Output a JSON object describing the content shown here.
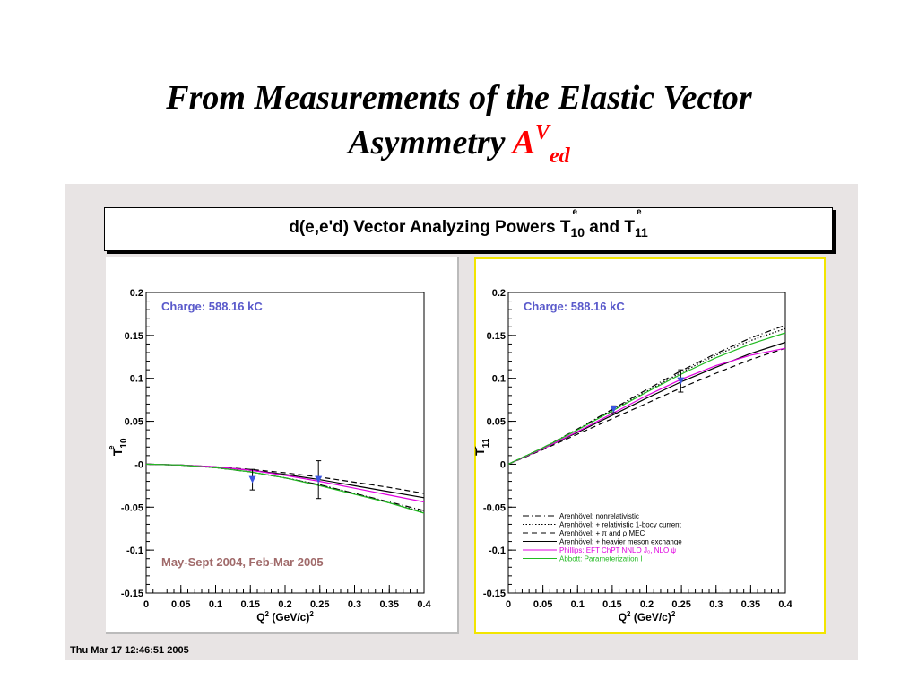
{
  "slide": {
    "title_line1": "From Measurements of the Elastic Vector",
    "title_line2": "Asymmetry",
    "title_symbol": "A",
    "title_sup": "V",
    "title_sub": "ed"
  },
  "canvas": {
    "header_prefix": "d(e,e'd) Vector Analyzing Powers T",
    "header_sub1": "10",
    "header_and": " and T",
    "header_sub2": "11",
    "header_sup": "e",
    "timestamp": "Thu Mar 17 12:46:51 2005"
  },
  "colors": {
    "charge": "#5a5acb",
    "period": "#a06a6a",
    "marker": "#3b55e0",
    "phillips": "#e000e0",
    "abbott": "#22bb22",
    "selected_pad": "#f2e500"
  },
  "chart_data": [
    {
      "type": "line",
      "panel": "left",
      "ylabel": "T",
      "ylabel_sup": "e",
      "ylabel_sub": "10",
      "xlabel": "Q",
      "xlabel_sup": "2",
      "xlabel_unit": " (GeV/c)",
      "xlabel_unit_sup": "2",
      "xlim": [
        0,
        0.4
      ],
      "ylim": [
        -0.15,
        0.2
      ],
      "xticks": [
        "0",
        "0.05",
        "0.1",
        "0.15",
        "0.2",
        "0.25",
        "0.3",
        "0.35",
        "0.4"
      ],
      "yticks": [
        "0.2",
        "0.15",
        "0.1",
        "0.05",
        "-0",
        "-0.05",
        "-0.1",
        "-0.15"
      ],
      "annotation_top": "Charge: 588.16 kC",
      "annotation_bottom": "May-Sept 2004, Feb-Mar 2005",
      "x": [
        0,
        0.05,
        0.1,
        0.15,
        0.2,
        0.25,
        0.3,
        0.35,
        0.4
      ],
      "series": [
        {
          "style": "dashdot",
          "color": "#000000",
          "values": [
            0,
            -0.001,
            -0.004,
            -0.009,
            -0.016,
            -0.024,
            -0.034,
            -0.044,
            -0.054
          ]
        },
        {
          "style": "dotted",
          "color": "#000000",
          "values": [
            0,
            -0.001,
            -0.004,
            -0.009,
            -0.016,
            -0.024,
            -0.034,
            -0.045,
            -0.056
          ]
        },
        {
          "style": "dashed",
          "color": "#000000",
          "values": [
            0,
            -0.001,
            -0.003,
            -0.006,
            -0.01,
            -0.015,
            -0.021,
            -0.027,
            -0.034
          ]
        },
        {
          "style": "solid",
          "color": "#000000",
          "values": [
            0,
            -0.001,
            -0.003,
            -0.007,
            -0.012,
            -0.018,
            -0.025,
            -0.032,
            -0.039
          ]
        },
        {
          "style": "solid",
          "color": "#e000e0",
          "values": [
            0,
            -0.001,
            -0.003,
            -0.007,
            -0.013,
            -0.02,
            -0.028,
            -0.036,
            -0.044
          ]
        },
        {
          "style": "solid",
          "color": "#22bb22",
          "values": [
            0,
            -0.001,
            -0.004,
            -0.009,
            -0.016,
            -0.025,
            -0.035,
            -0.045,
            -0.057
          ]
        }
      ],
      "points": [
        {
          "x": 0.153,
          "y": -0.018,
          "err": 0.012
        },
        {
          "x": 0.248,
          "y": -0.018,
          "err": 0.022
        }
      ]
    },
    {
      "type": "line",
      "panel": "right",
      "ylabel": "T",
      "ylabel_sup": "e",
      "ylabel_sub": "11",
      "xlabel": "Q",
      "xlabel_sup": "2",
      "xlabel_unit": " (GeV/c)",
      "xlabel_unit_sup": "2",
      "xlim": [
        0,
        0.4
      ],
      "ylim": [
        -0.15,
        0.2
      ],
      "xticks": [
        "0",
        "0.05",
        "0.1",
        "0.15",
        "0.2",
        "0.25",
        "0.3",
        "0.35",
        "0.4"
      ],
      "yticks": [
        "0.2",
        "0.15",
        "0.1",
        "0.05",
        "0",
        "-0.05",
        "-0.1",
        "-0.15"
      ],
      "annotation_top": "Charge: 588.16 kC",
      "x": [
        0,
        0.05,
        0.1,
        0.15,
        0.2,
        0.25,
        0.3,
        0.35,
        0.4
      ],
      "series": [
        {
          "name": "Arenhövel: nonrelativistic",
          "style": "dashdot",
          "color": "#000000",
          "values": [
            0,
            0.019,
            0.041,
            0.064,
            0.087,
            0.109,
            0.129,
            0.147,
            0.162
          ]
        },
        {
          "name": "Arenhövel: + relativistic 1-bocy current",
          "style": "dotted",
          "color": "#000000",
          "values": [
            0,
            0.019,
            0.04,
            0.063,
            0.085,
            0.107,
            0.127,
            0.144,
            0.158
          ]
        },
        {
          "name": "Arenhövel: + π and ρ MEC",
          "style": "dashed",
          "color": "#000000",
          "values": [
            0,
            0.017,
            0.035,
            0.053,
            0.071,
            0.089,
            0.106,
            0.122,
            0.135
          ]
        },
        {
          "name": "Arenhövel: + heavier meson exchange",
          "style": "solid",
          "color": "#000000",
          "values": [
            0,
            0.018,
            0.037,
            0.057,
            0.077,
            0.096,
            0.113,
            0.129,
            0.142
          ]
        },
        {
          "name": "Phillips: EFT ChPT NNLO J₀, NLO ψ",
          "style": "solid",
          "color": "#e000e0",
          "values": [
            0,
            0.018,
            0.038,
            0.059,
            0.08,
            0.099,
            0.115,
            0.127,
            0.135
          ]
        },
        {
          "name": "Abbott: Parameterization I",
          "style": "solid",
          "color": "#22bb22",
          "values": [
            0,
            0.019,
            0.04,
            0.062,
            0.084,
            0.105,
            0.124,
            0.14,
            0.153
          ]
        }
      ],
      "points": [
        {
          "x": 0.152,
          "y": 0.064,
          "err": 0.004
        },
        {
          "x": 0.249,
          "y": 0.097,
          "err": 0.013
        }
      ]
    }
  ]
}
